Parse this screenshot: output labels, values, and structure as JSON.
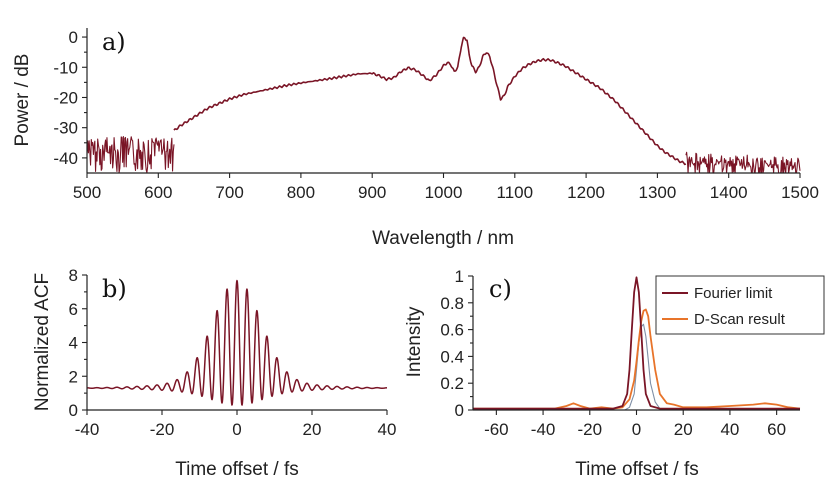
{
  "colors": {
    "series_dark": "#7a1526",
    "series_orange": "#e8742a",
    "series_faint": "#7f8fa6"
  },
  "chart_data": [
    {
      "id": "a",
      "type": "line",
      "panel_label": "a)",
      "xlabel": "Wavelength / nm",
      "ylabel": "Power / dB",
      "xlim": [
        500,
        1500
      ],
      "ylim": [
        -45,
        3
      ],
      "xticks": [
        500,
        600,
        700,
        800,
        900,
        1000,
        1100,
        1200,
        1300,
        1400,
        1500
      ],
      "yticks": [
        0,
        -10,
        -20,
        -30,
        -40
      ],
      "noise_regions": [
        [
          500,
          622
        ],
        [
          1340,
          1500
        ]
      ],
      "series": [
        {
          "color": "#7a1526",
          "x": [
            622,
            630,
            640,
            650,
            660,
            670,
            680,
            690,
            700,
            720,
            740,
            760,
            780,
            800,
            820,
            840,
            860,
            880,
            900,
            910,
            920,
            930,
            940,
            950,
            960,
            970,
            980,
            990,
            1000,
            1005,
            1010,
            1015,
            1020,
            1025,
            1028,
            1030,
            1033,
            1036,
            1040,
            1045,
            1050,
            1055,
            1060,
            1065,
            1070,
            1075,
            1080,
            1085,
            1090,
            1100,
            1110,
            1120,
            1130,
            1140,
            1150,
            1160,
            1170,
            1180,
            1190,
            1200,
            1210,
            1220,
            1230,
            1240,
            1250,
            1260,
            1270,
            1280,
            1290,
            1300,
            1310,
            1320,
            1330,
            1340
          ],
          "y": [
            -31,
            -29.5,
            -28,
            -26.5,
            -25,
            -23.5,
            -22.5,
            -21.5,
            -20.5,
            -19,
            -18,
            -17,
            -16,
            -15.2,
            -14.5,
            -13.8,
            -13,
            -12.2,
            -12,
            -12.8,
            -14,
            -13.5,
            -11.5,
            -10.2,
            -10.8,
            -12.5,
            -14.5,
            -12.5,
            -9.5,
            -8.5,
            -9,
            -11.5,
            -10,
            -3,
            -0.5,
            -0.3,
            -1,
            -6,
            -9.5,
            -11.5,
            -10,
            -6.5,
            -5,
            -6.5,
            -11,
            -16,
            -20.5,
            -19.5,
            -16.5,
            -13,
            -10.5,
            -9,
            -8,
            -7.5,
            -7.6,
            -8.5,
            -9.5,
            -11,
            -12.5,
            -14,
            -15.5,
            -17,
            -19,
            -21,
            -23.5,
            -26,
            -28.5,
            -31,
            -33.5,
            -36,
            -38,
            -39.5,
            -41,
            -42
          ]
        }
      ]
    },
    {
      "id": "b",
      "type": "line",
      "panel_label": "b)",
      "xlabel": "Time offset / fs",
      "ylabel": "Normalized ACF",
      "xlim": [
        -40,
        40
      ],
      "ylim": [
        0,
        8
      ],
      "xticks": [
        -40,
        -20,
        0,
        20,
        40
      ],
      "yticks": [
        0,
        2,
        4,
        6,
        8
      ],
      "fringe_period_fs": 2.67,
      "peak_value": 8,
      "background_value": 1.3,
      "series": [
        {
          "color": "#7a1526",
          "values_note": "interferometric autocorrelation"
        }
      ]
    },
    {
      "id": "c",
      "type": "line",
      "panel_label": "c)",
      "xlabel": "Time offset / fs",
      "ylabel": "Intensity",
      "xlim": [
        -70,
        70
      ],
      "ylim": [
        0,
        1
      ],
      "xticks": [
        -60,
        -40,
        -20,
        0,
        20,
        40,
        60
      ],
      "yticks": [
        0,
        0.2,
        0.4,
        0.6,
        0.8,
        1
      ],
      "legend_position": "top-right",
      "series": [
        {
          "name": "Fourier limit",
          "color": "#7a1526",
          "x": [
            -70,
            -10,
            -6,
            -4,
            -3,
            -2,
            -1,
            0,
            1,
            2,
            3,
            4,
            6,
            10,
            70
          ],
          "y": [
            0.01,
            0.01,
            0.03,
            0.12,
            0.3,
            0.6,
            0.88,
            0.99,
            0.88,
            0.6,
            0.3,
            0.12,
            0.03,
            0.01,
            0.01
          ]
        },
        {
          "name": "D-Scan result",
          "color": "#e8742a",
          "x": [
            -70,
            -35,
            -30,
            -27,
            -24,
            -20,
            -15,
            -10,
            -6,
            -3,
            -1,
            0,
            1,
            2,
            3,
            4,
            5,
            6,
            8,
            10,
            13,
            16,
            20,
            30,
            40,
            50,
            55,
            60,
            65,
            70
          ],
          "y": [
            0.01,
            0.01,
            0.03,
            0.05,
            0.03,
            0.01,
            0.02,
            0.01,
            0.02,
            0.08,
            0.22,
            0.36,
            0.52,
            0.66,
            0.74,
            0.75,
            0.7,
            0.55,
            0.3,
            0.12,
            0.05,
            0.04,
            0.02,
            0.02,
            0.03,
            0.04,
            0.05,
            0.04,
            0.02,
            0.01
          ]
        },
        {
          "color": "#7f8fa6",
          "x": [
            -70,
            -5,
            -3,
            -1,
            0,
            1,
            2,
            3,
            4,
            5,
            6,
            8,
            10,
            70
          ],
          "y": [
            0.0,
            0.0,
            0.02,
            0.12,
            0.3,
            0.5,
            0.62,
            0.64,
            0.55,
            0.38,
            0.2,
            0.06,
            0.01,
            0.0
          ]
        }
      ]
    }
  ]
}
